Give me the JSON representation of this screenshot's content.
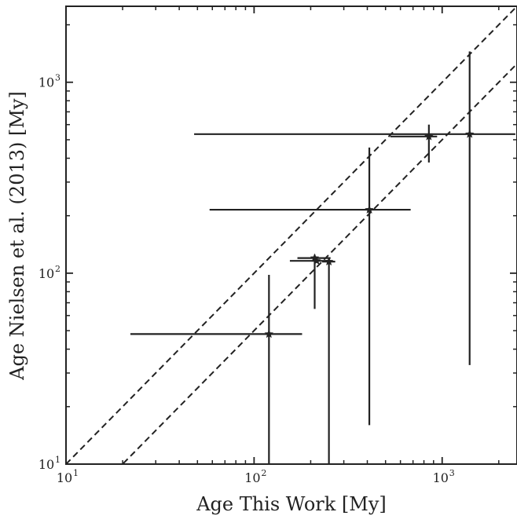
{
  "chart_data": {
    "type": "scatter",
    "title": "",
    "xlabel": "Age This Work [My]",
    "ylabel": "Age Nielsen et al. (2013)  [My]",
    "xscale": "log",
    "yscale": "log",
    "xlim": [
      10,
      2500
    ],
    "ylim": [
      10,
      2500
    ],
    "xticks": [
      {
        "base": "10",
        "exp": "1",
        "value": 10
      },
      {
        "base": "10",
        "exp": "2",
        "value": 100
      },
      {
        "base": "10",
        "exp": "3",
        "value": 1000
      }
    ],
    "yticks": [
      {
        "base": "10",
        "exp": "1",
        "value": 10
      },
      {
        "base": "10",
        "exp": "2",
        "value": 100
      },
      {
        "base": "10",
        "exp": "3",
        "value": 1000
      }
    ],
    "grid": false,
    "marker": "star",
    "color": "#222222",
    "reference_lines": [
      {
        "style": "dashed",
        "slope": 1,
        "factor": 1
      },
      {
        "style": "dashed",
        "slope": 1,
        "factor": 0.5
      }
    ],
    "points": [
      {
        "x": 120,
        "y": 48,
        "xerr": [
          22,
          180
        ],
        "yerr": [
          10,
          98
        ]
      },
      {
        "x": 210,
        "y": 120,
        "xerr": [
          170,
          255
        ],
        "yerr": [
          65,
          125
        ]
      },
      {
        "x": 215,
        "y": 116,
        "xerr": [
          155,
          250
        ],
        "yerr": [
          116,
          116
        ]
      },
      {
        "x": 250,
        "y": 115,
        "xerr": [
          230,
          270
        ],
        "yerr": [
          10,
          120
        ]
      },
      {
        "x": 410,
        "y": 215,
        "xerr": [
          58,
          680
        ],
        "yerr": [
          16,
          455
        ]
      },
      {
        "x": 850,
        "y": 520,
        "xerr": [
          530,
          940
        ],
        "yerr": [
          380,
          600
        ]
      },
      {
        "x": 1400,
        "y": 535,
        "xerr": [
          48,
          2450
        ],
        "yerr": [
          33,
          1450
        ]
      }
    ]
  }
}
